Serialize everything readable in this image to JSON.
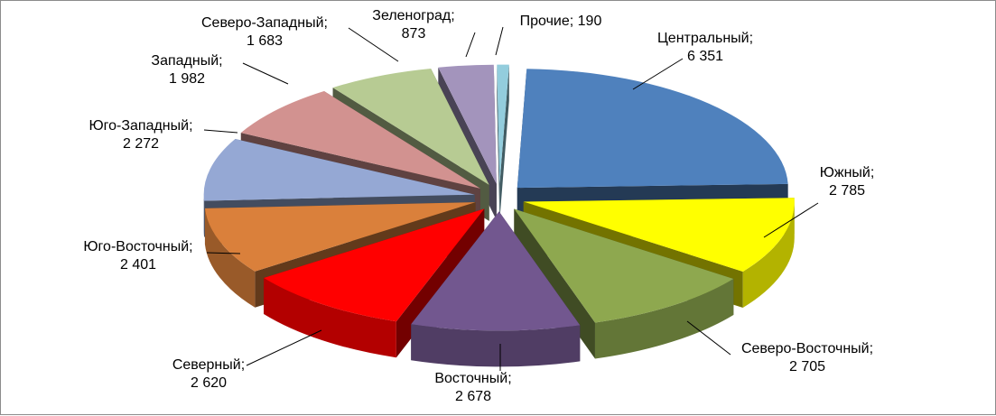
{
  "chart_data": {
    "type": "pie",
    "title": "",
    "style": "3d-exploded",
    "legend": "none",
    "unit": "",
    "slices": [
      {
        "name": "Центральный",
        "value": 6351,
        "label_name": "Центральный;",
        "label_value": "6 351",
        "color": "#4F81BD"
      },
      {
        "name": "Южный",
        "value": 2785,
        "label_name": "Южный;",
        "label_value": "2 785",
        "color": "#FFFF00"
      },
      {
        "name": "Северо-Восточный",
        "value": 2705,
        "label_name": "Северо-Восточный;",
        "label_value": "2 705",
        "color": "#8EA84F"
      },
      {
        "name": "Восточный",
        "value": 2678,
        "label_name": "Восточный;",
        "label_value": "2 678",
        "color": "#72578F"
      },
      {
        "name": "Северный",
        "value": 2620,
        "label_name": "Северный;",
        "label_value": "2 620",
        "color": "#FF0000"
      },
      {
        "name": "Юго-Восточный",
        "value": 2401,
        "label_name": "Юго-Восточный;",
        "label_value": "2 401",
        "color": "#DA803B"
      },
      {
        "name": "Юго-Западный",
        "value": 2272,
        "label_name": "Юго-Западный;",
        "label_value": "2 272",
        "color": "#95A8D4"
      },
      {
        "name": "Западный",
        "value": 1982,
        "label_name": "Западный;",
        "label_value": "1 982",
        "color": "#D29290"
      },
      {
        "name": "Северо-Западный",
        "value": 1683,
        "label_name": "Северо-Западный;",
        "label_value": "1 683",
        "color": "#B7CB93"
      },
      {
        "name": "Зеленоград",
        "value": 873,
        "label_name": "Зеленоград;",
        "label_value": "873",
        "color": "#A394BC"
      },
      {
        "name": "Прочие",
        "value": 190,
        "label_name": "Прочие; 190",
        "label_value": "",
        "color": "#93CDDD"
      }
    ]
  }
}
